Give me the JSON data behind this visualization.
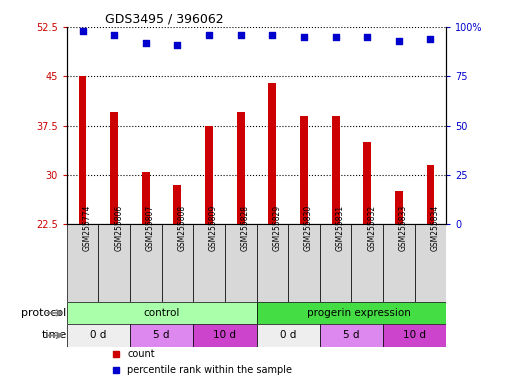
{
  "title": "GDS3495 / 396062",
  "samples": [
    "GSM255774",
    "GSM255806",
    "GSM255807",
    "GSM255808",
    "GSM255809",
    "GSM255828",
    "GSM255829",
    "GSM255830",
    "GSM255831",
    "GSM255832",
    "GSM255833",
    "GSM255834"
  ],
  "counts": [
    45.0,
    39.5,
    30.5,
    28.5,
    37.5,
    39.5,
    44.0,
    39.0,
    39.0,
    35.0,
    27.5,
    31.5
  ],
  "percentiles": [
    98,
    96,
    92,
    91,
    96,
    96,
    96,
    95,
    95,
    95,
    93,
    94
  ],
  "ylim_left": [
    22.5,
    52.5
  ],
  "ylim_right": [
    0,
    100
  ],
  "yticks_left": [
    22.5,
    30,
    37.5,
    45,
    52.5
  ],
  "yticks_right": [
    0,
    25,
    50,
    75,
    100
  ],
  "bar_color": "#cc0000",
  "dot_color": "#0000cc",
  "protocol_control_color": "#aaffaa",
  "protocol_progerin_color": "#44dd44",
  "time_0d_color": "#eeeeee",
  "time_5d_color": "#dd88ee",
  "time_10d_color": "#cc44cc",
  "protocol_control_label": "control",
  "protocol_progerin_label": "progerin expression",
  "protocol_label": "protocol",
  "time_label": "time",
  "legend_count": "count",
  "legend_percentile": "percentile rank within the sample",
  "control_samples": 6,
  "time_groups": [
    {
      "label": "0 d",
      "start": 0,
      "end": 2,
      "color": "#eeeeee"
    },
    {
      "label": "5 d",
      "start": 2,
      "end": 4,
      "color": "#dd88ee"
    },
    {
      "label": "10 d",
      "start": 4,
      "end": 6,
      "color": "#cc44cc"
    },
    {
      "label": "0 d",
      "start": 6,
      "end": 8,
      "color": "#eeeeee"
    },
    {
      "label": "5 d",
      "start": 8,
      "end": 10,
      "color": "#dd88ee"
    },
    {
      "label": "10 d",
      "start": 10,
      "end": 12,
      "color": "#cc44cc"
    }
  ],
  "sample_box_color": "#d8d8d8",
  "bar_width": 0.25
}
